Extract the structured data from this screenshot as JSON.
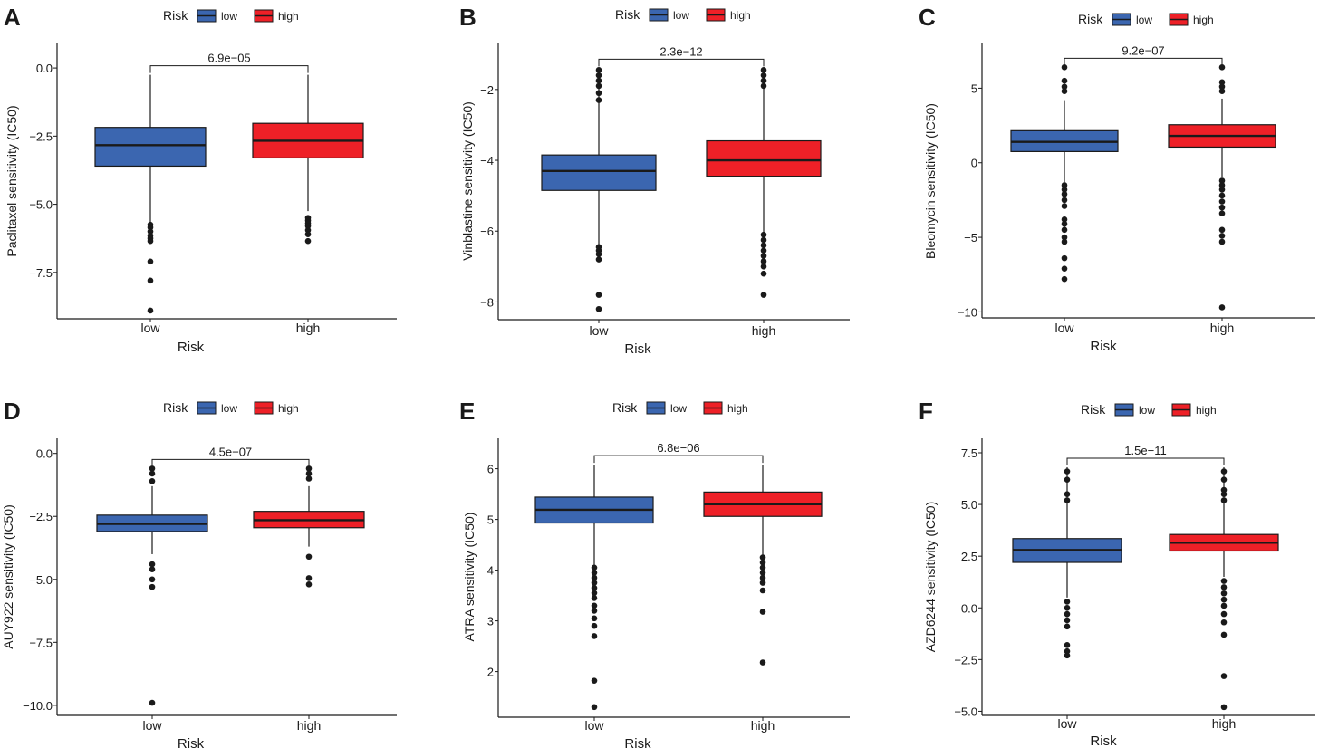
{
  "figure": {
    "colors": {
      "low": "#3b66b0",
      "high": "#ee2027",
      "line": "#1a1a1a"
    },
    "legend": {
      "title": "Risk",
      "items": [
        "low",
        "high"
      ]
    },
    "xlabel": "Risk",
    "categories": [
      "low",
      "high"
    ]
  },
  "chart_data": [
    {
      "letter": "A",
      "type": "box",
      "ylabel": "Paclitaxel sensitivity (IC50)",
      "pvalue": "6.9e−05",
      "ylim": [
        -9.2,
        0.9
      ],
      "yticks": [
        0.0,
        -2.5,
        -5.0,
        -7.5
      ],
      "yticklabels": [
        "0.0",
        "−2.5",
        "−5.0",
        "−7.5"
      ],
      "groups": [
        {
          "name": "low",
          "q1": -3.6,
          "median": -2.83,
          "q3": -2.18,
          "whisker_low": -5.7,
          "whisker_high": -0.25,
          "outliers": [
            -5.75,
            -5.85,
            -6.0,
            -6.15,
            -6.25,
            -6.35,
            -7.1,
            -7.8,
            -8.9
          ]
        },
        {
          "name": "high",
          "q1": -3.3,
          "median": -2.67,
          "q3": -2.03,
          "whisker_low": -5.25,
          "whisker_high": -0.25,
          "outliers": [
            -5.5,
            -5.6,
            -5.7,
            -5.8,
            -5.95,
            -6.1,
            -6.35
          ]
        }
      ]
    },
    {
      "letter": "B",
      "type": "box",
      "ylabel": "Vinblastine sensitivity (IC50)",
      "pvalue": "2.3e−12",
      "ylim": [
        -8.5,
        -0.7
      ],
      "yticks": [
        -2,
        -4,
        -6,
        -8
      ],
      "yticklabels": [
        "−2",
        "−4",
        "−6",
        "−8"
      ],
      "groups": [
        {
          "name": "low",
          "q1": -4.85,
          "median": -4.3,
          "q3": -3.85,
          "whisker_low": -6.4,
          "whisker_high": -1.4,
          "outliers": [
            -1.45,
            -1.6,
            -1.75,
            -1.9,
            -2.1,
            -2.3,
            -6.45,
            -6.55,
            -6.65,
            -6.8,
            -7.8,
            -8.2
          ]
        },
        {
          "name": "high",
          "q1": -4.45,
          "median": -4.0,
          "q3": -3.45,
          "whisker_low": -6.05,
          "whisker_high": -1.4,
          "outliers": [
            -1.45,
            -1.6,
            -1.75,
            -1.9,
            -6.1,
            -6.25,
            -6.4,
            -6.55,
            -6.7,
            -6.85,
            -7.0,
            -7.2,
            -7.8
          ]
        }
      ]
    },
    {
      "letter": "C",
      "type": "box",
      "ylabel": "Bleomycin sensitivity (IC50)",
      "pvalue": "9.2e−07",
      "ylim": [
        -10.4,
        8.0
      ],
      "yticks": [
        5,
        0,
        -5,
        -10
      ],
      "yticklabels": [
        "5",
        "0",
        "−5",
        "−10"
      ],
      "groups": [
        {
          "name": "low",
          "q1": 0.75,
          "median": 1.4,
          "q3": 2.15,
          "whisker_low": -1.3,
          "whisker_high": 4.2,
          "outliers": [
            4.8,
            5.1,
            5.5,
            6.4,
            -1.5,
            -1.8,
            -2.1,
            -2.5,
            -2.9,
            -3.8,
            -4.1,
            -4.5,
            -5.0,
            -5.3,
            -6.4,
            -7.1,
            -7.8
          ]
        },
        {
          "name": "high",
          "q1": 1.05,
          "median": 1.8,
          "q3": 2.55,
          "whisker_low": -1.0,
          "whisker_high": 4.3,
          "outliers": [
            4.8,
            5.1,
            5.4,
            6.4,
            -1.2,
            -1.5,
            -1.8,
            -2.2,
            -2.6,
            -3.0,
            -3.4,
            -4.5,
            -4.9,
            -5.3,
            -9.7
          ]
        }
      ]
    },
    {
      "letter": "D",
      "type": "box",
      "ylabel": "AUY922 sensitivity (IC50)",
      "pvalue": "4.5e−07",
      "ylim": [
        -10.4,
        0.6
      ],
      "yticks": [
        0.0,
        -2.5,
        -5.0,
        -7.5,
        -10.0
      ],
      "yticklabels": [
        "0.0",
        "−2.5",
        "−5.0",
        "−7.5",
        "−10.0"
      ],
      "groups": [
        {
          "name": "low",
          "q1": -3.1,
          "median": -2.8,
          "q3": -2.45,
          "whisker_low": -4.0,
          "whisker_high": -1.3,
          "outliers": [
            -0.6,
            -0.8,
            -1.1,
            -4.4,
            -4.6,
            -5.0,
            -5.3,
            -9.9
          ]
        },
        {
          "name": "high",
          "q1": -2.95,
          "median": -2.65,
          "q3": -2.3,
          "whisker_low": -3.7,
          "whisker_high": -1.3,
          "outliers": [
            -0.6,
            -0.8,
            -1.0,
            -4.1,
            -4.95,
            -5.2
          ]
        }
      ]
    },
    {
      "letter": "E",
      "type": "box",
      "ylabel": "ATRA sensitivity (IC50)",
      "pvalue": "6.8e−06",
      "ylim": [
        1.1,
        6.6
      ],
      "yticks": [
        6,
        5,
        4,
        3,
        2
      ],
      "yticklabels": [
        "6",
        "5",
        "4",
        "3",
        "2"
      ],
      "groups": [
        {
          "name": "low",
          "q1": 4.93,
          "median": 5.19,
          "q3": 5.44,
          "whisker_low": 4.1,
          "whisker_high": 6.08,
          "outliers": [
            4.05,
            3.95,
            3.85,
            3.75,
            3.65,
            3.55,
            3.45,
            3.3,
            3.2,
            3.05,
            2.9,
            2.7,
            1.82,
            1.3
          ]
        },
        {
          "name": "high",
          "q1": 5.06,
          "median": 5.3,
          "q3": 5.54,
          "whisker_low": 4.3,
          "whisker_high": 6.08,
          "outliers": [
            4.25,
            4.15,
            4.05,
            3.95,
            3.85,
            3.75,
            3.6,
            3.18,
            2.18
          ]
        }
      ]
    },
    {
      "letter": "F",
      "type": "box",
      "ylabel": "AZD6244 sensitivity (IC50)",
      "pvalue": "1.5e−11",
      "ylim": [
        -5.2,
        8.2
      ],
      "yticks": [
        7.5,
        5.0,
        2.5,
        0.0,
        -2.5,
        -5.0
      ],
      "yticklabels": [
        "7.5",
        "5.0",
        "2.5",
        "0.0",
        "−2.5",
        "−5.0"
      ],
      "groups": [
        {
          "name": "low",
          "q1": 2.2,
          "median": 2.8,
          "q3": 3.35,
          "whisker_low": 0.5,
          "whisker_high": 6.8,
          "outliers": [
            5.2,
            5.5,
            6.2,
            6.6,
            0.3,
            0.0,
            -0.3,
            -0.6,
            -0.9,
            -1.8,
            -2.1,
            -2.3
          ]
        },
        {
          "name": "high",
          "q1": 2.75,
          "median": 3.15,
          "q3": 3.55,
          "whisker_low": 1.5,
          "whisker_high": 6.8,
          "outliers": [
            5.2,
            5.5,
            5.7,
            6.2,
            6.6,
            1.3,
            1.0,
            0.7,
            0.4,
            0.1,
            -0.3,
            -0.7,
            -1.3,
            -3.3,
            -4.8
          ]
        }
      ]
    }
  ]
}
